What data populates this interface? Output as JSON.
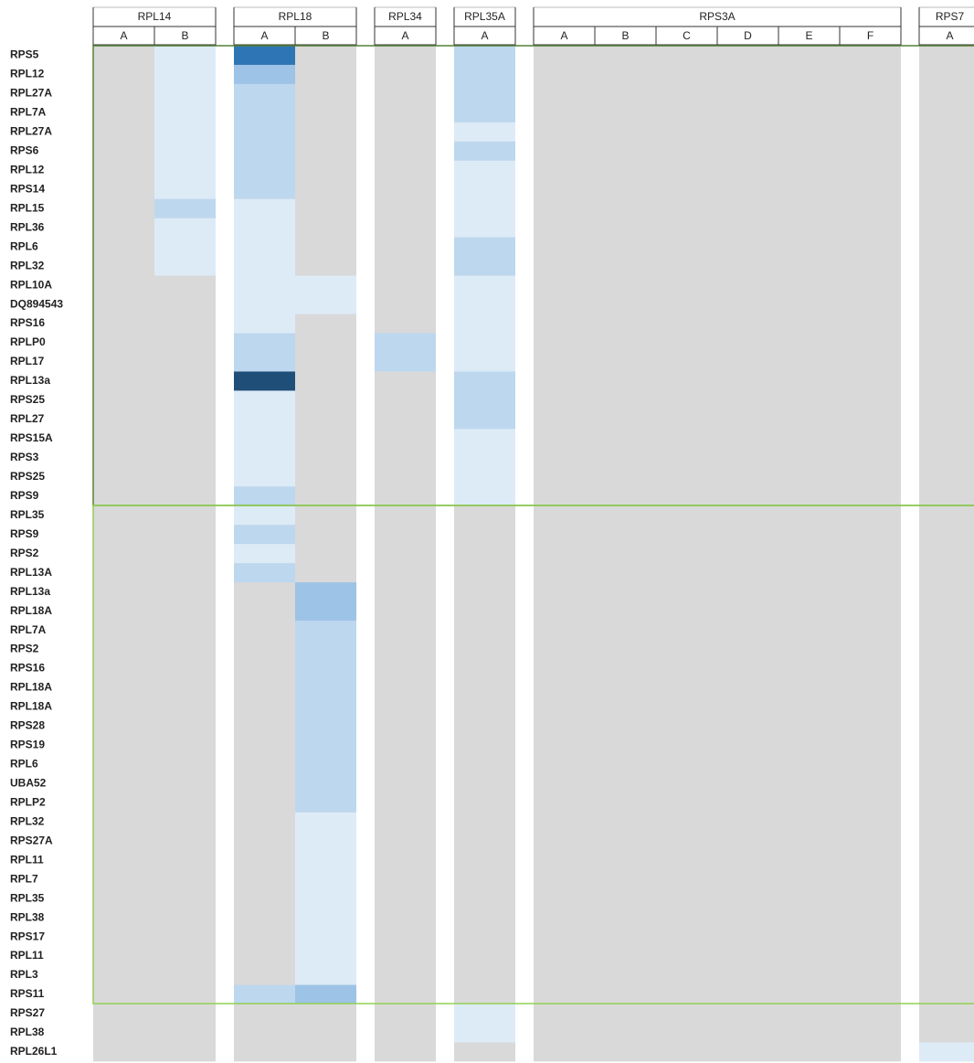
{
  "groups": [
    {
      "name": "RPL14",
      "columns": [
        {
          "label": "A",
          "fills": []
        },
        {
          "label": "B",
          "fills": [
            {
              "from": 0,
              "to": 7,
              "color": "#ddebf7"
            },
            {
              "from": 8,
              "to": 8,
              "color": "#bdd7ee"
            },
            {
              "from": 9,
              "to": 11,
              "color": "#ddebf7"
            }
          ]
        }
      ]
    },
    {
      "name": "RPL18",
      "columns": [
        {
          "label": "A",
          "fills": [
            {
              "from": 0,
              "to": 0,
              "color": "#2e75b6"
            },
            {
              "from": 1,
              "to": 1,
              "color": "#9dc3e6"
            },
            {
              "from": 2,
              "to": 7,
              "color": "#bdd7ee"
            },
            {
              "from": 8,
              "to": 14,
              "color": "#ddebf7"
            },
            {
              "from": 15,
              "to": 16,
              "color": "#bdd7ee"
            },
            {
              "from": 17,
              "to": 17,
              "color": "#1f4e79"
            },
            {
              "from": 18,
              "to": 22,
              "color": "#ddebf7"
            },
            {
              "from": 23,
              "to": 23,
              "color": "#bdd7ee"
            },
            {
              "from": 24,
              "to": 24,
              "color": "#ddebf7"
            },
            {
              "from": 25,
              "to": 25,
              "color": "#bdd7ee"
            },
            {
              "from": 26,
              "to": 26,
              "color": "#ddebf7"
            },
            {
              "from": 27,
              "to": 27,
              "color": "#bdd7ee"
            },
            {
              "from": 49,
              "to": 49,
              "color": "#bdd7ee"
            }
          ]
        },
        {
          "label": "B",
          "fills": [
            {
              "from": 12,
              "to": 13,
              "color": "#ddebf7"
            },
            {
              "from": 28,
              "to": 29,
              "color": "#9dc3e6"
            },
            {
              "from": 30,
              "to": 39,
              "color": "#bdd7ee"
            },
            {
              "from": 40,
              "to": 48,
              "color": "#ddebf7"
            },
            {
              "from": 49,
              "to": 49,
              "color": "#9dc3e6"
            }
          ]
        }
      ]
    },
    {
      "name": "RPL34",
      "columns": [
        {
          "label": "A",
          "fills": [
            {
              "from": 15,
              "to": 16,
              "color": "#bdd7ee"
            }
          ]
        }
      ]
    },
    {
      "name": "RPL35A",
      "columns": [
        {
          "label": "A",
          "fills": [
            {
              "from": 0,
              "to": 3,
              "color": "#bdd7ee"
            },
            {
              "from": 4,
              "to": 4,
              "color": "#ddebf7"
            },
            {
              "from": 5,
              "to": 5,
              "color": "#bdd7ee"
            },
            {
              "from": 6,
              "to": 9,
              "color": "#ddebf7"
            },
            {
              "from": 10,
              "to": 11,
              "color": "#bdd7ee"
            },
            {
              "from": 12,
              "to": 16,
              "color": "#ddebf7"
            },
            {
              "from": 17,
              "to": 19,
              "color": "#bdd7ee"
            },
            {
              "from": 20,
              "to": 23,
              "color": "#ddebf7"
            },
            {
              "from": 50,
              "to": 51,
              "color": "#ddebf7"
            }
          ]
        }
      ]
    },
    {
      "name": "RPS3A",
      "columns": [
        {
          "label": "A",
          "fills": []
        },
        {
          "label": "B",
          "fills": []
        },
        {
          "label": "C",
          "fills": []
        },
        {
          "label": "D",
          "fills": []
        },
        {
          "label": "E",
          "fills": []
        },
        {
          "label": "F",
          "fills": []
        }
      ]
    },
    {
      "name": "RPS7",
      "columns": [
        {
          "label": "A",
          "fills": [
            {
              "from": 52,
              "to": 52,
              "color": "#ddebf7"
            }
          ]
        }
      ]
    }
  ],
  "rows": [
    "RPS5",
    "RPL12",
    "RPL27A",
    "RPL7A",
    "RPL27A",
    "RPS6",
    "RPL12",
    "RPS14",
    "RPL15",
    "RPL36",
    "RPL6",
    "RPL32",
    "RPL10A",
    "DQ894543",
    "RPS16",
    "RPLP0",
    "RPL17",
    "RPL13a",
    "RPS25",
    "RPL27",
    "RPS15A",
    "RPS3",
    "RPS25",
    "RPS9",
    "RPL35",
    "RPS9",
    "RPS2",
    "RPL13A",
    "RPL13a",
    "RPL18A",
    "RPL7A",
    "RPS2",
    "RPS16",
    "RPL18A",
    "RPL18A",
    "RPS28",
    "RPS19",
    "RPL6",
    "UBA52",
    "RPLP2",
    "RPL32",
    "RPS27A",
    "RPL11",
    "RPL7",
    "RPL35",
    "RPL38",
    "RPS17",
    "RPL11",
    "RPL3",
    "RPS11",
    "RPS27",
    "RPL38",
    "RPL26L1"
  ]
}
